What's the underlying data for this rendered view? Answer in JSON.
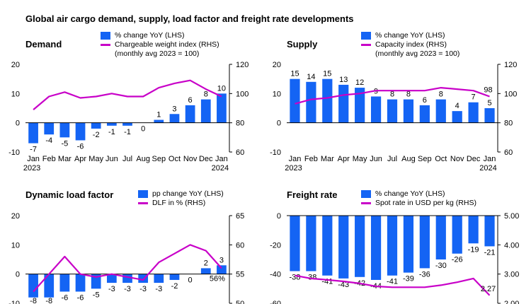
{
  "title": "Global air cargo demand, supply, load factor and freight rate developments",
  "colors": {
    "bar": "#1464F4",
    "line": "#C800C8",
    "axis": "#000000"
  },
  "chart_data": [
    {
      "id": "demand",
      "type": "bar+line",
      "title": "Demand",
      "categories": [
        "Jan\n2023",
        "Feb",
        "Mar",
        "Apr",
        "May",
        "Jun",
        "Jul",
        "Aug",
        "Sep",
        "Oct",
        "Nov",
        "Dec",
        "Jan\n2024"
      ],
      "bar_series": {
        "name": "% change YoY (LHS)",
        "values": [
          -7,
          -4,
          -5,
          -6,
          -2,
          -1,
          -1,
          0,
          1,
          3,
          6,
          8,
          10
        ]
      },
      "line_series": {
        "name": "Chargeable weight index (RHS)\n(monthly avg 2023 = 100)",
        "values": [
          89,
          98,
          101,
          97,
          98,
          100,
          98,
          98,
          104,
          107,
          109,
          103,
          98
        ]
      },
      "bar_labels": [
        "-7",
        "-4",
        "-5",
        "-6",
        "-2",
        "-1",
        "-1",
        "0",
        "1",
        "3",
        "6",
        "8",
        "10"
      ],
      "line_label": null,
      "lhs": {
        "min": -10,
        "max": 20,
        "ticks": [
          "-10",
          "0",
          "10",
          "20"
        ]
      },
      "rhs": {
        "min": 60,
        "max": 120,
        "ticks": [
          "60",
          "80",
          "100",
          "120"
        ]
      },
      "show_x_labels": true
    },
    {
      "id": "supply",
      "type": "bar+line",
      "title": "Supply",
      "categories": [
        "Jan\n2023",
        "Feb",
        "Mar",
        "Apr",
        "May",
        "Jun",
        "Jul",
        "Aug",
        "Sep",
        "Oct",
        "Nov",
        "Dec",
        "Jan\n2024"
      ],
      "bar_series": {
        "name": "% change YoY (LHS)",
        "values": [
          15,
          14,
          15,
          13,
          12,
          9,
          8,
          8,
          6,
          8,
          4,
          7,
          5
        ]
      },
      "line_series": {
        "name": "Capacity index (RHS)\n(monthly avg 2023 = 100)",
        "values": [
          93,
          96,
          97,
          99,
          100,
          102,
          102,
          102,
          102,
          104,
          103,
          102,
          98
        ]
      },
      "bar_labels": [
        "15",
        "14",
        "15",
        "13",
        "12",
        "9",
        "8",
        "8",
        "6",
        "8",
        "4",
        "7",
        "5"
      ],
      "line_label": "98",
      "lhs": {
        "min": -10,
        "max": 20,
        "ticks": [
          "-10",
          "0",
          "10",
          "20"
        ]
      },
      "rhs": {
        "min": 60,
        "max": 120,
        "ticks": [
          "60",
          "80",
          "100",
          "120"
        ]
      },
      "show_x_labels": true
    },
    {
      "id": "dlf",
      "type": "bar+line",
      "title": "Dynamic load factor",
      "categories": [
        "Jan",
        "Feb",
        "Mar",
        "Apr",
        "May",
        "Jun",
        "Jul",
        "Aug",
        "Sep",
        "Oct",
        "Nov",
        "Dec",
        "Jan"
      ],
      "bar_series": {
        "name": "pp change YoY (LHS)",
        "values": [
          -8,
          -8,
          -6,
          -6,
          -5,
          -3,
          -3,
          -3,
          -3,
          -2,
          0,
          2,
          3
        ]
      },
      "line_series": {
        "name": "DLF in % (RHS)",
        "values": [
          52,
          55,
          58,
          55,
          54.5,
          55,
          54.5,
          54,
          57,
          58.5,
          60,
          59,
          56
        ]
      },
      "bar_labels": [
        "-8",
        "-8",
        "-6",
        "-6",
        "-5",
        "-3",
        "-3",
        "-3",
        "-3",
        "-2",
        "0",
        "2",
        "3"
      ],
      "line_label": "56%",
      "lhs": {
        "min": -10,
        "max": 20,
        "ticks": [
          "-10",
          "0",
          "10",
          "20"
        ]
      },
      "rhs": {
        "min": 50,
        "max": 65,
        "ticks": [
          "50",
          "55",
          "60",
          "65"
        ]
      },
      "show_x_labels": false
    },
    {
      "id": "freight",
      "type": "bar+line",
      "title": "Freight rate",
      "categories": [
        "Jan",
        "Feb",
        "Mar",
        "Apr",
        "May",
        "Jun",
        "Jul",
        "Aug",
        "Sep",
        "Oct",
        "Nov",
        "Dec",
        "Jan"
      ],
      "bar_series": {
        "name": "% change YoY (LHS)",
        "values": [
          -38,
          -38,
          -41,
          -43,
          -42,
          -44,
          -41,
          -39,
          -36,
          -30,
          -26,
          -19,
          -21
        ]
      },
      "line_series": {
        "name": "Spot rate in USD per kg (RHS)",
        "values": [
          2.95,
          2.85,
          2.8,
          2.75,
          2.68,
          2.58,
          2.55,
          2.55,
          2.55,
          2.62,
          2.72,
          2.85,
          2.27
        ]
      },
      "bar_labels": [
        "-38",
        "-38",
        "-41",
        "-43",
        "-42",
        "-44",
        "-41",
        "-39",
        "-36",
        "-30",
        "-26",
        "-19",
        "-21"
      ],
      "line_label": "2.27",
      "lhs": {
        "min": -60,
        "max": 0,
        "ticks": [
          "-60",
          "-40",
          "-20",
          "0"
        ]
      },
      "rhs": {
        "min": 2.0,
        "max": 5.0,
        "ticks": [
          "2.00",
          "3.00",
          "4.00",
          "5.00"
        ]
      },
      "show_x_labels": false
    }
  ]
}
